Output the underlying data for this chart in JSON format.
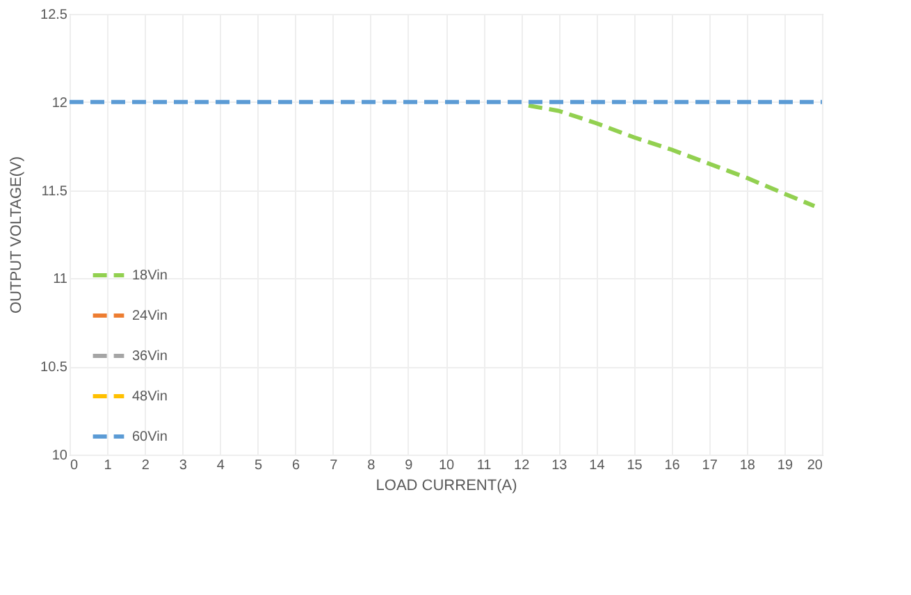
{
  "chart_data": {
    "type": "line",
    "xlabel": "LOAD CURRENT(A)",
    "ylabel": "OUTPUT VOLTAGE(V)",
    "xlim": [
      0,
      20
    ],
    "xticks": [
      0,
      1,
      2,
      3,
      4,
      5,
      6,
      7,
      8,
      9,
      10,
      11,
      12,
      13,
      14,
      15,
      16,
      17,
      18,
      19,
      20
    ],
    "ylim": [
      10,
      12.5
    ],
    "yticks": [
      10,
      10.5,
      11,
      11.5,
      12,
      12.5
    ],
    "grid": true,
    "legend": "left",
    "line_style": "dashed",
    "marker": "none",
    "series": [
      {
        "name": "18Vin",
        "color": "#92d050",
        "x": [
          12.2,
          13,
          14,
          15,
          16,
          17,
          18,
          19,
          19.8
        ],
        "values": [
          11.98,
          11.95,
          11.88,
          11.8,
          11.73,
          11.65,
          11.57,
          11.48,
          11.41
        ]
      },
      {
        "name": "24Vin",
        "color": "#ed7d31"
      },
      {
        "name": "36Vin",
        "color": "#a5a5a5"
      },
      {
        "name": "48Vin",
        "color": "#ffc000"
      },
      {
        "name": "60Vin",
        "color": "#5b9bd5",
        "x": [
          0,
          20
        ],
        "values": [
          12,
          12
        ]
      }
    ]
  }
}
